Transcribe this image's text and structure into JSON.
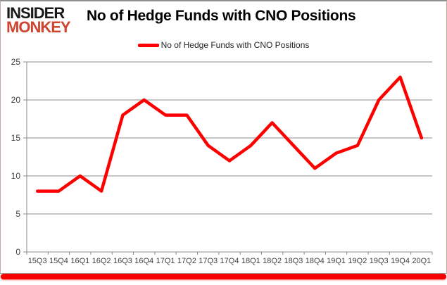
{
  "logo": {
    "line1": "INSIDER",
    "line2": "MONKEY"
  },
  "chart_data": {
    "type": "line",
    "title": "No of Hedge Funds with CNO Positions",
    "categories": [
      "15Q3",
      "15Q4",
      "16Q1",
      "16Q2",
      "16Q3",
      "16Q4",
      "17Q1",
      "17Q2",
      "17Q3",
      "17Q4",
      "18Q1",
      "18Q2",
      "18Q3",
      "18Q4",
      "19Q1",
      "19Q2",
      "19Q3",
      "19Q4",
      "20Q1"
    ],
    "series": [
      {
        "name": "No of Hedge Funds with CNO Positions",
        "values": [
          8,
          8,
          10,
          8,
          18,
          20,
          18,
          18,
          14,
          12,
          14,
          17,
          14,
          11,
          13,
          14,
          20,
          23,
          15
        ],
        "color": "#fe0000"
      }
    ],
    "ylim": [
      0,
      25
    ],
    "yticks": [
      0,
      5,
      10,
      15,
      20,
      25
    ],
    "grid": true,
    "legend_position": "top-center",
    "xlabel": "",
    "ylabel": "",
    "grid_color": "#8c8c8c",
    "axis_color": "#8c8c8c",
    "axis_label_color": "#3f3f3f"
  },
  "colors": {
    "accent_red": "#fe0000",
    "logo_black": "#191919",
    "logo_red": "#d0432e",
    "bottom_bar_red": "#f80000"
  }
}
